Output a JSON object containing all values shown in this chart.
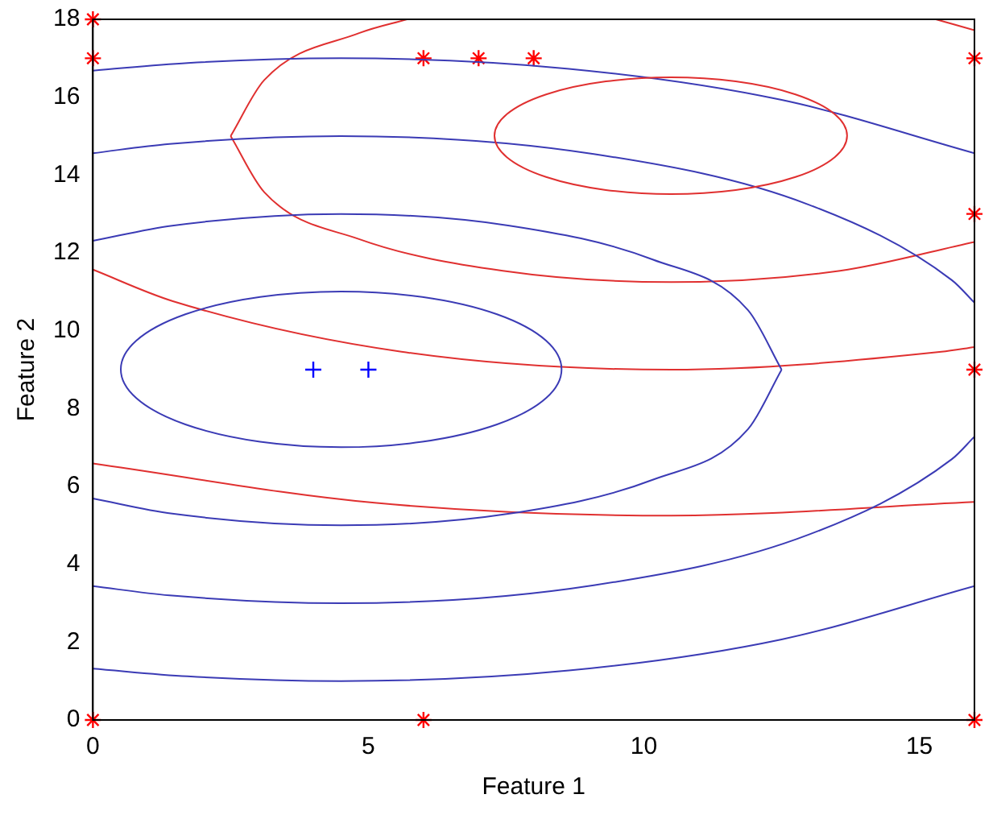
{
  "chart_data": {
    "type": "scatter",
    "xlabel": "Feature 1",
    "ylabel": "Feature 2",
    "xlim": [
      0,
      16
    ],
    "ylim": [
      0,
      18
    ],
    "xticks": [
      0,
      5,
      10,
      15
    ],
    "yticks": [
      0,
      2,
      4,
      6,
      8,
      10,
      12,
      14,
      16,
      18
    ],
    "grid": false,
    "legend": false,
    "series": [
      {
        "type": "line",
        "color": "#3b3bb5",
        "marker": "none",
        "x": [
          0,
          1.44,
          4.5,
          7.56,
          10.16,
          11.89,
          12.5
        ],
        "values": [
          5.69,
          5.3,
          5,
          5.3,
          6.17,
          7.47,
          9
        ]
      },
      {
        "type": "line",
        "color": "#3b3bb5",
        "marker": "none",
        "x": [
          0,
          1.44,
          4.5,
          7.56,
          10.16,
          11.89,
          12.5
        ],
        "values": [
          12.31,
          12.7,
          13,
          12.7,
          11.83,
          10.53,
          9
        ]
      },
      {
        "type": "line",
        "color": "#3b3bb5",
        "marker": "none",
        "x": [
          0,
          1.39,
          4.5,
          9.09,
          12.99,
          15.59,
          16
        ],
        "values": [
          3.44,
          3.2,
          3,
          3.46,
          4.76,
          6.7,
          7.28
        ]
      },
      {
        "type": "line",
        "color": "#3b3bb5",
        "marker": "none",
        "x": [
          0,
          1.39,
          4.5,
          9.09,
          12.99,
          15.59,
          16
        ],
        "values": [
          14.56,
          14.8,
          15,
          14.54,
          13.24,
          11.3,
          10.72
        ]
      },
      {
        "type": "line",
        "color": "#3b3bb5",
        "marker": "none",
        "x": [
          0,
          1.72,
          4.5,
          8.64,
          12.5,
          16
        ],
        "values": [
          16.68,
          16.88,
          17,
          16.73,
          15.93,
          14.56
        ]
      },
      {
        "type": "line",
        "color": "#3b3bb5",
        "marker": "none",
        "x": [
          0,
          1.72,
          4.5,
          8.64,
          12.5,
          16
        ],
        "values": [
          1.32,
          1.12,
          1,
          1.27,
          2.07,
          3.44
        ]
      },
      {
        "type": "line",
        "color": "#e03030",
        "marker": "none",
        "x": [
          2.5,
          3.11,
          4.84,
          5.7
        ],
        "values": [
          15,
          16.44,
          17.65,
          18
        ]
      },
      {
        "type": "line",
        "color": "#e03030",
        "marker": "none",
        "x": [
          2.5,
          3.11,
          4.84,
          7.44,
          10.5,
          13.56,
          16
        ],
        "values": [
          15,
          13.56,
          12.35,
          11.54,
          11.25,
          11.54,
          12.28
        ]
      },
      {
        "type": "line",
        "color": "#e03030",
        "marker": "none",
        "x": [
          15.3,
          16
        ],
        "values": [
          18,
          17.72
        ]
      },
      {
        "type": "line",
        "color": "#e03030",
        "marker": "none",
        "x": [
          0,
          1.45,
          5.6,
          10.5,
          15.4,
          16
        ],
        "values": [
          11.57,
          10.76,
          9.46,
          9,
          9.46,
          9.58
        ]
      },
      {
        "type": "line",
        "color": "#e03030",
        "marker": "none",
        "x": [
          0,
          5.11,
          10.5,
          16
        ],
        "values": [
          6.59,
          5.58,
          5.25,
          5.6
        ]
      },
      {
        "type": "scatter",
        "color": "#0000ff",
        "marker": "cross",
        "x": [
          4,
          5
        ],
        "values": [
          9,
          9
        ]
      },
      {
        "type": "scatter",
        "color": "#ff0000",
        "x": [
          0,
          0,
          6,
          7,
          8,
          0,
          6,
          16,
          16,
          16,
          16
        ],
        "values": [
          18,
          17,
          17,
          17,
          17,
          0,
          0,
          0,
          9,
          13,
          17
        ]
      }
    ]
  }
}
